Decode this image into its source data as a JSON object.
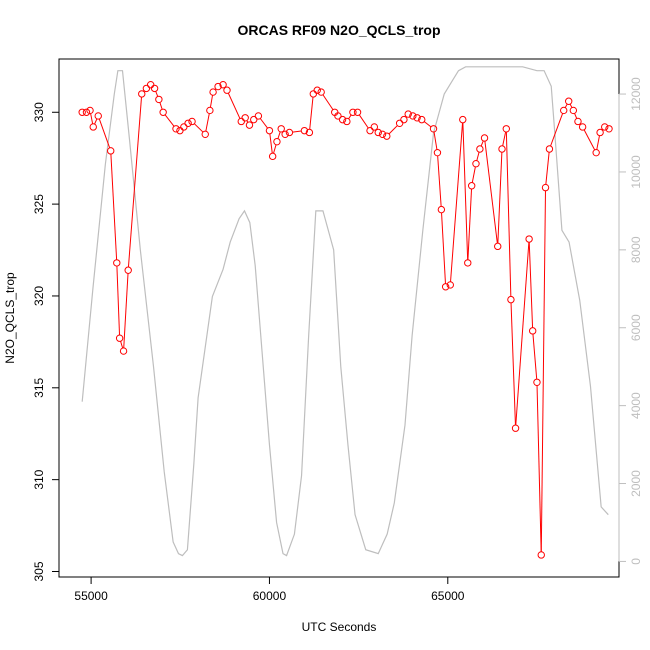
{
  "chart_data": {
    "type": "line",
    "title": "ORCAS RF09 N2O_QCLS_trop",
    "xlabel": "UTC Seconds",
    "ylabel": "N2O_QCLS_trop",
    "xlim": [
      54100,
      69800
    ],
    "ylim": [
      304.7,
      332.9
    ],
    "y2lim": [
      -400,
      12900
    ],
    "x_ticks": [
      55000,
      60000,
      65000
    ],
    "y_ticks": [
      305,
      310,
      315,
      320,
      325,
      330
    ],
    "y2_ticks": [
      0,
      2000,
      4000,
      6000,
      8000,
      10000,
      12000
    ],
    "colors": {
      "series": "#ff0000",
      "secondary": "#bebebe",
      "axis": "#000000"
    },
    "series": [
      {
        "y_axis": "left",
        "marker": "open-circle",
        "x": [
          54750,
          54870,
          54970,
          55060,
          55200,
          55550,
          55720,
          55800,
          55910,
          56040,
          56420,
          56550,
          56670,
          56780,
          56900,
          57020,
          57380,
          57490,
          57600,
          57720,
          57830,
          58200,
          58330,
          58420,
          58560,
          58700,
          58810,
          59210,
          59320,
          59440,
          59560,
          59690,
          60000,
          60090,
          60210,
          60330,
          60440,
          60560,
          60980,
          61120,
          61230,
          61340,
          61450,
          61830,
          61920,
          62050,
          62170,
          62340,
          62470,
          62820,
          62940,
          63050,
          63170,
          63290,
          63650,
          63770,
          63890,
          64020,
          64140,
          64270,
          64600,
          64710,
          64820,
          64940,
          65070,
          65420,
          65560,
          65670,
          65790,
          65900,
          66030,
          66400,
          66520,
          66640,
          66770,
          66900,
          67280,
          67380,
          67500,
          67620,
          67740,
          67850,
          68250,
          68390,
          68520,
          68650,
          68780,
          69160,
          69270,
          69400,
          69520
        ],
        "y": [
          330.0,
          330.0,
          330.1,
          329.2,
          329.8,
          327.9,
          321.8,
          317.7,
          317.0,
          321.4,
          331.0,
          331.3,
          331.5,
          331.3,
          330.7,
          330.0,
          329.1,
          329.0,
          329.2,
          329.4,
          329.5,
          328.8,
          330.1,
          331.1,
          331.4,
          331.5,
          331.2,
          329.5,
          329.7,
          329.3,
          329.6,
          329.8,
          329.0,
          327.6,
          328.4,
          329.1,
          328.8,
          328.9,
          329.0,
          328.9,
          331.0,
          331.2,
          331.1,
          330.0,
          329.8,
          329.6,
          329.5,
          330.0,
          330.0,
          329.0,
          329.2,
          328.9,
          328.8,
          328.7,
          329.4,
          329.6,
          329.9,
          329.8,
          329.7,
          329.6,
          329.1,
          327.8,
          324.7,
          320.5,
          320.6,
          329.6,
          321.8,
          326.0,
          327.2,
          328.0,
          328.6,
          322.7,
          328.0,
          329.1,
          319.8,
          312.8,
          323.1,
          318.1,
          315.3,
          305.9,
          325.9,
          328.0,
          330.1,
          330.6,
          330.1,
          329.5,
          329.2,
          327.8,
          328.9,
          329.2,
          329.1
        ]
      },
      {
        "y_axis": "right",
        "x": [
          54750,
          55050,
          55400,
          55650,
          55750,
          55880,
          56080,
          56380,
          56750,
          57050,
          57300,
          57450,
          57560,
          57700,
          57880,
          58000,
          58400,
          58700,
          58900,
          59150,
          59300,
          59450,
          59600,
          59800,
          60000,
          60200,
          60380,
          60480,
          60700,
          60900,
          61100,
          61300,
          61500,
          61800,
          62000,
          62200,
          62400,
          62700,
          63050,
          63300,
          63500,
          63800,
          64000,
          64300,
          64600,
          64750,
          64900,
          65100,
          65300,
          65500,
          65700,
          66000,
          66300,
          66700,
          67100,
          67500,
          67700,
          67900,
          68000,
          68200,
          68400,
          68700,
          69000,
          69300,
          69500
        ],
        "y": [
          4100,
          7000,
          10200,
          12000,
          12600,
          12600,
          10800,
          8000,
          5000,
          2300,
          500,
          200,
          150,
          300,
          2500,
          4200,
          6800,
          7500,
          8200,
          8800,
          9000,
          8700,
          7600,
          5300,
          3000,
          1000,
          200,
          150,
          700,
          2200,
          5800,
          9000,
          9000,
          8000,
          5000,
          3000,
          1200,
          300,
          200,
          700,
          1500,
          3500,
          5800,
          8500,
          11000,
          11500,
          12000,
          12300,
          12600,
          12700,
          12700,
          12700,
          12700,
          12700,
          12700,
          12600,
          12600,
          12200,
          11000,
          8500,
          8200,
          6700,
          4500,
          1400,
          1200
        ]
      }
    ]
  }
}
